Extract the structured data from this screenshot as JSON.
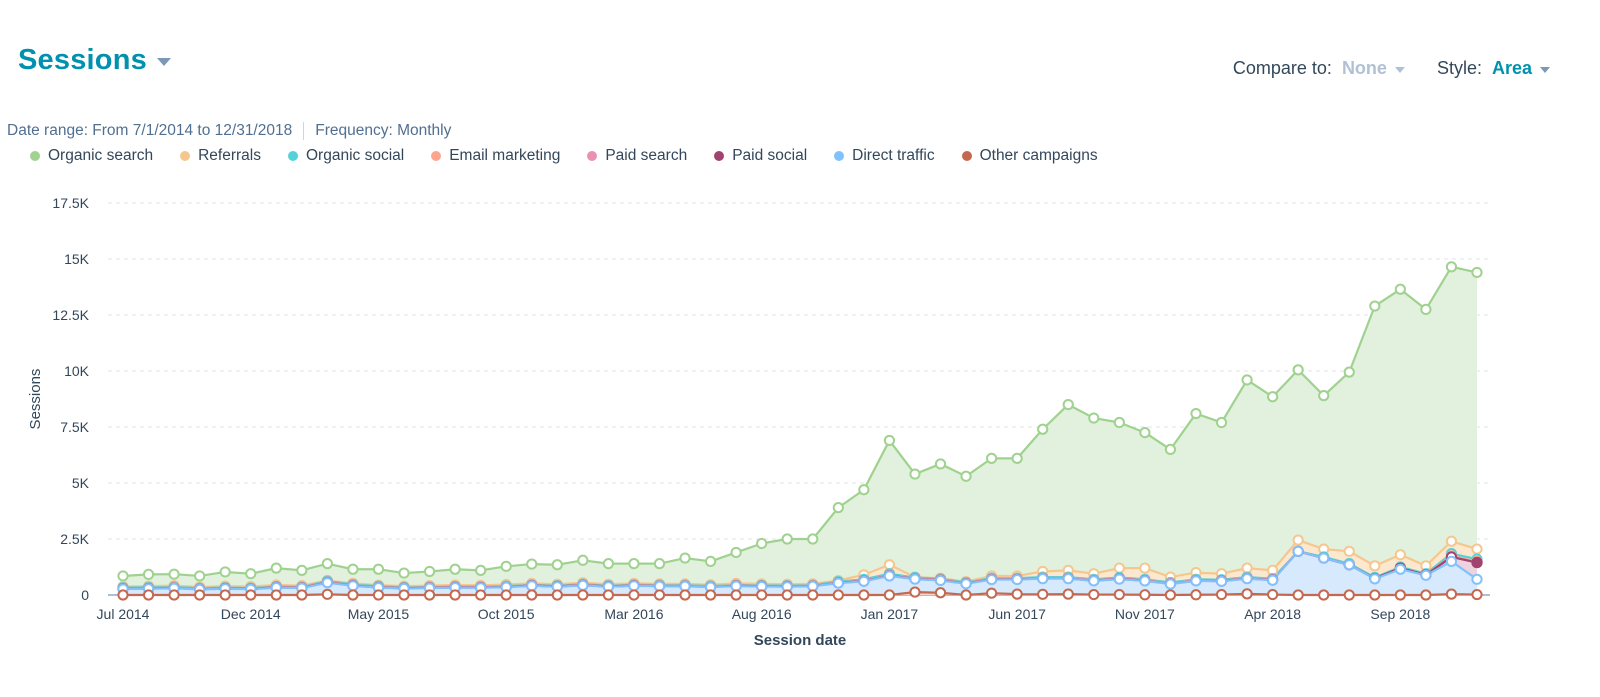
{
  "header": {
    "title": "Sessions"
  },
  "controls": {
    "compare_label": "Compare to:",
    "compare_value": "None",
    "style_label": "Style:",
    "style_value": "Area"
  },
  "meta": {
    "date_range": "Date range: From 7/1/2014 to 12/31/2018",
    "frequency": "Frequency: Monthly"
  },
  "colors": {
    "accent": "#0091ae",
    "organic_search": "#a2d28f",
    "referrals": "#f5c78e",
    "organic_social": "#51d3d9",
    "email_marketing": "#fea58e",
    "paid_search": "#ea90b1",
    "paid_social": "#a0436e",
    "direct_traffic": "#81c1fd",
    "other_campaigns": "#c4684f"
  },
  "chart_data": {
    "type": "area",
    "title": "Sessions",
    "xlabel": "Session date",
    "ylabel": "Sessions",
    "ylim": [
      0,
      17500
    ],
    "yticks": [
      0,
      2500,
      5000,
      7500,
      10000,
      12500,
      15000,
      17500
    ],
    "ytick_labels": [
      "0",
      "2.5K",
      "5K",
      "7.5K",
      "10K",
      "12.5K",
      "15K",
      "17.5K"
    ],
    "xtick_labels": [
      "Jul 2014",
      "Dec 2014",
      "May 2015",
      "Oct 2015",
      "Mar 2016",
      "Aug 2016",
      "Jan 2017",
      "Jun 2017",
      "Nov 2017",
      "Apr 2018",
      "Sep 2018"
    ],
    "xtick_indices": [
      0,
      5,
      10,
      15,
      20,
      25,
      30,
      35,
      40,
      45,
      50
    ],
    "grid": true,
    "legend_position": "top-left",
    "series": [
      {
        "name": "Organic search",
        "key": "organic_search",
        "cumulative": [
          850,
          920,
          930,
          850,
          1030,
          950,
          1200,
          1100,
          1400,
          1150,
          1150,
          980,
          1050,
          1150,
          1100,
          1280,
          1380,
          1350,
          1550,
          1400,
          1400,
          1400,
          1650,
          1500,
          1900,
          2300,
          2500,
          2500,
          3900,
          4700,
          6900,
          5400,
          5850,
          5300,
          6100,
          6100,
          7400,
          8500,
          7900,
          7700,
          7250,
          6500,
          8100,
          7700,
          9600,
          8850,
          10050,
          8900,
          9950,
          12900,
          13650,
          12750,
          14650,
          14400
        ]
      },
      {
        "name": "Referrals",
        "key": "referrals",
        "cumulative": [
          380,
          400,
          420,
          360,
          400,
          380,
          450,
          420,
          650,
          520,
          440,
          400,
          420,
          450,
          430,
          470,
          520,
          480,
          550,
          480,
          520,
          500,
          500,
          460,
          520,
          500,
          480,
          500,
          650,
          900,
          1350,
          800,
          750,
          600,
          850,
          850,
          1050,
          1100,
          950,
          1200,
          1200,
          800,
          1000,
          950,
          1200,
          1100,
          2450,
          2050,
          1950,
          1300,
          1800,
          1300,
          2400,
          2050
        ]
      },
      {
        "name": "Organic social",
        "key": "organic_social",
        "cumulative": [
          330,
          340,
          360,
          300,
          330,
          310,
          380,
          360,
          620,
          470,
          390,
          340,
          360,
          380,
          370,
          400,
          460,
          420,
          480,
          420,
          460,
          440,
          440,
          400,
          450,
          430,
          420,
          440,
          600,
          700,
          950,
          780,
          720,
          560,
          750,
          750,
          800,
          800,
          700,
          780,
          700,
          560,
          700,
          680,
          800,
          730,
          1950,
          1700,
          1400,
          780,
          1250,
          950,
          1850,
          1600
        ]
      },
      {
        "name": "Email marketing",
        "key": "email_marketing",
        "cumulative": [
          300,
          310,
          330,
          280,
          310,
          290,
          360,
          340,
          580,
          440,
          360,
          320,
          340,
          360,
          350,
          380,
          440,
          400,
          460,
          400,
          440,
          420,
          420,
          380,
          430,
          410,
          400,
          420,
          560,
          640,
          880,
          740,
          680,
          530,
          720,
          720,
          760,
          760,
          660,
          740,
          660,
          520,
          660,
          640,
          760,
          690,
          1950,
          1650,
          1350,
          740,
          1200,
          900,
          1750,
          1500
        ]
      },
      {
        "name": "Paid search",
        "key": "paid_search",
        "cumulative": [
          290,
          300,
          320,
          270,
          300,
          280,
          350,
          330,
          570,
          430,
          350,
          310,
          330,
          350,
          340,
          370,
          430,
          390,
          450,
          390,
          430,
          410,
          410,
          370,
          420,
          400,
          390,
          410,
          550,
          630,
          870,
          730,
          670,
          520,
          710,
          710,
          750,
          750,
          650,
          730,
          650,
          510,
          650,
          630,
          750,
          680,
          1950,
          1650,
          1350,
          740,
          1200,
          900,
          1700,
          1450
        ]
      },
      {
        "name": "Paid social",
        "key": "paid_social",
        "cumulative": [
          280,
          290,
          310,
          260,
          290,
          270,
          340,
          320,
          560,
          420,
          340,
          300,
          320,
          340,
          330,
          360,
          420,
          380,
          440,
          380,
          420,
          400,
          400,
          360,
          410,
          390,
          380,
          400,
          540,
          620,
          860,
          720,
          660,
          510,
          700,
          700,
          740,
          740,
          640,
          720,
          640,
          500,
          640,
          620,
          740,
          670,
          1950,
          1650,
          1350,
          740,
          1200,
          900,
          1700,
          1450
        ]
      },
      {
        "name": "Direct traffic",
        "key": "direct_traffic",
        "cumulative": [
          270,
          280,
          300,
          250,
          280,
          260,
          330,
          310,
          550,
          410,
          330,
          290,
          310,
          330,
          320,
          350,
          410,
          370,
          430,
          370,
          410,
          390,
          390,
          350,
          400,
          380,
          370,
          390,
          530,
          610,
          850,
          710,
          650,
          500,
          690,
          690,
          730,
          730,
          630,
          710,
          630,
          490,
          630,
          610,
          730,
          660,
          1950,
          1650,
          1350,
          720,
          1150,
          880,
          1500,
          700
        ]
      },
      {
        "name": "Other campaigns",
        "key": "other_campaigns",
        "cumulative": [
          0,
          0,
          0,
          0,
          0,
          0,
          0,
          0,
          30,
          0,
          0,
          0,
          0,
          0,
          0,
          0,
          0,
          0,
          0,
          0,
          0,
          0,
          0,
          0,
          0,
          0,
          0,
          0,
          0,
          0,
          0,
          130,
          100,
          0,
          80,
          40,
          30,
          40,
          20,
          20,
          10,
          0,
          10,
          20,
          50,
          20,
          0,
          0,
          0,
          0,
          0,
          0,
          40,
          20
        ]
      }
    ]
  }
}
